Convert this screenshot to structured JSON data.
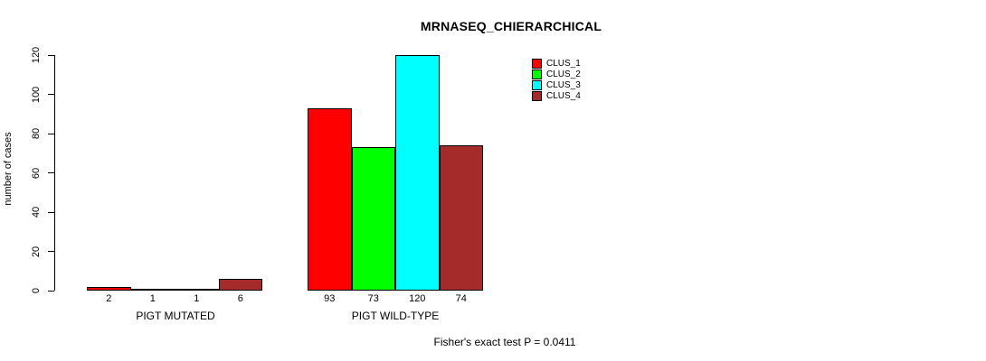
{
  "title": "MRNASEQ_CHIERARCHICAL",
  "footer_note": "Fisher's exact test P = 0.0411",
  "chart_data": {
    "type": "bar",
    "title": "MRNASEQ_CHIERARCHICAL",
    "xlabel": "",
    "ylabel": "number of cases",
    "ylim": [
      0,
      120
    ],
    "yticks": [
      0,
      20,
      40,
      60,
      80,
      100,
      120
    ],
    "grid": false,
    "legend_position": "top-right",
    "categories": [
      "PIGT MUTATED",
      "PIGT WILD-TYPE"
    ],
    "series": [
      {
        "name": "CLUS_1",
        "color": "#FF0000",
        "values": [
          2,
          93
        ]
      },
      {
        "name": "CLUS_2",
        "color": "#00FF00",
        "values": [
          1,
          73
        ]
      },
      {
        "name": "CLUS_3",
        "color": "#00FFFF",
        "values": [
          1,
          120
        ]
      },
      {
        "name": "CLUS_4",
        "color": "#A52A2A",
        "values": [
          6,
          74
        ]
      }
    ],
    "bar_value_labels_shown": true,
    "annotation": "Fisher's exact test P = 0.0411"
  }
}
